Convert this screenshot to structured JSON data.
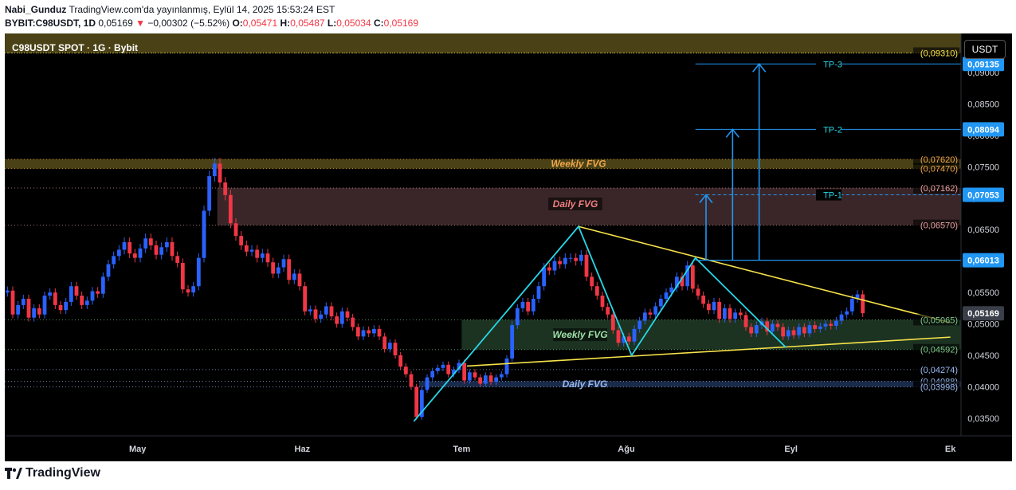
{
  "header": {
    "line1_user": "Nabi_Gunduz",
    "line1_rest": " TradingView.com'da yayınlanmış, Eylül 14, 2025 15:53:24 EST",
    "line2_symbol": "BYBIT:C98USDT, 1D",
    "line2_price": "0,05169",
    "line2_change": "−0,00302 (−5.52%)",
    "open_label": "O:",
    "open": "0,05471",
    "high_label": "H:",
    "high": "0,05487",
    "low_label": "L:",
    "low": "0,05034",
    "close_label": "C:",
    "close": "0,05169"
  },
  "banner": {
    "title": "C98USDT SPOT · 1G · Bybit"
  },
  "currency_button": "USDT",
  "footer": {
    "brand": "TradingView"
  },
  "colors": {
    "up": "#2962ff",
    "down": "#f23645",
    "trend": "#f7e34a",
    "pattern": "#26d7e8",
    "target": "#2196f3",
    "zone_olive": "#4a4216",
    "zone_daily": "#3a2628",
    "zone_weekly_green": "#1c3322"
  },
  "chart_data": {
    "type": "candlestick",
    "y_axis_ticks": [
      "0,09000",
      "0,08500",
      "0,08000",
      "0,07500",
      "0,07000",
      "0,06500",
      "0,06000",
      "0,05500",
      "0,05000",
      "0,04500",
      "0,04000",
      "0,03500"
    ],
    "y_axis_tick_values": [
      0.09,
      0.085,
      0.08,
      0.075,
      0.07,
      0.065,
      0.06,
      0.055,
      0.05,
      0.045,
      0.04,
      0.035
    ],
    "ylim": [
      0.0322,
      0.0962
    ],
    "x_axis_ticks": [
      "May",
      "Haz",
      "Tem",
      "Ağu",
      "Eyl",
      "Ek"
    ],
    "x_axis_tick_days": [
      25,
      56,
      86,
      117,
      148,
      178
    ],
    "xlim": [
      0,
      180
    ],
    "price_labels": [
      {
        "text": "0,09135",
        "value": 0.09135,
        "highlight": true
      },
      {
        "text": "0,08094",
        "value": 0.08094,
        "highlight": true
      },
      {
        "text": "0,07053",
        "value": 0.07053,
        "highlight": true
      },
      {
        "text": "0,06013",
        "value": 0.06013,
        "highlight": true
      },
      {
        "text": "0,05169",
        "value": 0.05169,
        "highlight": false
      }
    ],
    "levels": [
      {
        "text": "(0,09310)",
        "value": 0.0931,
        "color": "#f7e34a"
      },
      {
        "text": "(0,07620)",
        "value": 0.0762,
        "color": "#f0a64b"
      },
      {
        "text": "(0,07470)",
        "value": 0.0747,
        "color": "#f0a64b"
      },
      {
        "text": "(0,07162)",
        "value": 0.07162,
        "color": "#e8a0a0"
      },
      {
        "text": "(0,06570)",
        "value": 0.0657,
        "color": "#e8a0a0"
      },
      {
        "text": "(0,05065)",
        "value": 0.05065,
        "color": "#7fc98a"
      },
      {
        "text": "(0,04592)",
        "value": 0.04592,
        "color": "#7fc98a"
      },
      {
        "text": "(0,04274)",
        "value": 0.04274,
        "color": "#9ab8f0"
      },
      {
        "text": "(0,04088)",
        "value": 0.04088,
        "color": "#9ab8f0"
      },
      {
        "text": "(0,03998)",
        "value": 0.03998,
        "color": "#9ab8f0"
      }
    ],
    "zones": [
      {
        "label": "Weekly FVG",
        "top": 0.0762,
        "bottom": 0.0747,
        "x_start": 0,
        "color": "#4a4216",
        "text_color": "#f0a64b"
      },
      {
        "label": "Daily FVG",
        "top": 0.07162,
        "bottom": 0.0657,
        "x_start": 40,
        "color": "#3a2628",
        "text_color": "#f08080"
      },
      {
        "label": "Weekly FVG",
        "top": 0.05065,
        "bottom": 0.04592,
        "x_start": 86,
        "color": "#1c3322",
        "text_color": "#9fe0a8"
      },
      {
        "label": "Daily FVG",
        "top": 0.04088,
        "bottom": 0.03998,
        "x_start": 78,
        "color": "#1a2a4a",
        "text_color": "#9ab8f0"
      }
    ],
    "targets": [
      {
        "label": "TP-1",
        "value": 0.07053,
        "dashed": true
      },
      {
        "label": "TP-2",
        "value": 0.08094,
        "dashed": false
      },
      {
        "label": "TP-3",
        "value": 0.09135,
        "dashed": false
      }
    ],
    "base_level": 0.06013,
    "trendlines": [
      {
        "from": [
          108,
          0.0655
        ],
        "to": [
          178,
          0.0502
        ]
      },
      {
        "from": [
          87,
          0.0433
        ],
        "to": [
          178,
          0.0479
        ]
      }
    ],
    "pattern_path": [
      [
        77,
        0.0345
      ],
      [
        108,
        0.0655
      ],
      [
        118,
        0.045
      ],
      [
        130,
        0.0605
      ],
      [
        147,
        0.0463
      ]
    ],
    "candles": {
      "start_day": 0,
      "open_start": 0.055,
      "closes": [
        0.0553,
        0.0515,
        0.053,
        0.054,
        0.051,
        0.0525,
        0.0515,
        0.0545,
        0.055,
        0.053,
        0.0522,
        0.0535,
        0.056,
        0.0545,
        0.053,
        0.0537,
        0.0552,
        0.0548,
        0.0575,
        0.0595,
        0.0608,
        0.0618,
        0.063,
        0.0612,
        0.0605,
        0.062,
        0.0636,
        0.0625,
        0.061,
        0.0622,
        0.063,
        0.0608,
        0.0597,
        0.0555,
        0.055,
        0.056,
        0.0605,
        0.068,
        0.0735,
        0.0755,
        0.0725,
        0.0705,
        0.066,
        0.064,
        0.0625,
        0.0615,
        0.0618,
        0.0605,
        0.0612,
        0.0598,
        0.058,
        0.059,
        0.0603,
        0.057,
        0.058,
        0.056,
        0.052,
        0.0523,
        0.0508,
        0.0515,
        0.0528,
        0.0512,
        0.05,
        0.052,
        0.051,
        0.0495,
        0.048,
        0.049,
        0.0485,
        0.0492,
        0.048,
        0.046,
        0.047,
        0.045,
        0.0432,
        0.042,
        0.04,
        0.0352,
        0.0395,
        0.0415,
        0.0425,
        0.043,
        0.0435,
        0.042,
        0.0427,
        0.0438,
        0.041,
        0.0423,
        0.0415,
        0.0405,
        0.0418,
        0.0408,
        0.0415,
        0.042,
        0.0445,
        0.0498,
        0.0525,
        0.0535,
        0.052,
        0.054,
        0.056,
        0.059,
        0.0585,
        0.06,
        0.0595,
        0.0605,
        0.0605,
        0.06,
        0.061,
        0.0575,
        0.056,
        0.0545,
        0.0527,
        0.0515,
        0.049,
        0.047,
        0.048,
        0.0472,
        0.0492,
        0.0505,
        0.0518,
        0.0515,
        0.0528,
        0.054,
        0.055,
        0.0558,
        0.0575,
        0.056,
        0.0593,
        0.0556,
        0.0545,
        0.0532,
        0.0522,
        0.0535,
        0.0508,
        0.0525,
        0.0508,
        0.0518,
        0.0514,
        0.0495,
        0.0485,
        0.0498,
        0.0504,
        0.0488,
        0.05,
        0.0495,
        0.048,
        0.049,
        0.0482,
        0.0495,
        0.0485,
        0.0498,
        0.0492,
        0.0496,
        0.05,
        0.0497,
        0.0505,
        0.0515,
        0.052,
        0.054,
        0.0547,
        0.0517
      ]
    }
  }
}
